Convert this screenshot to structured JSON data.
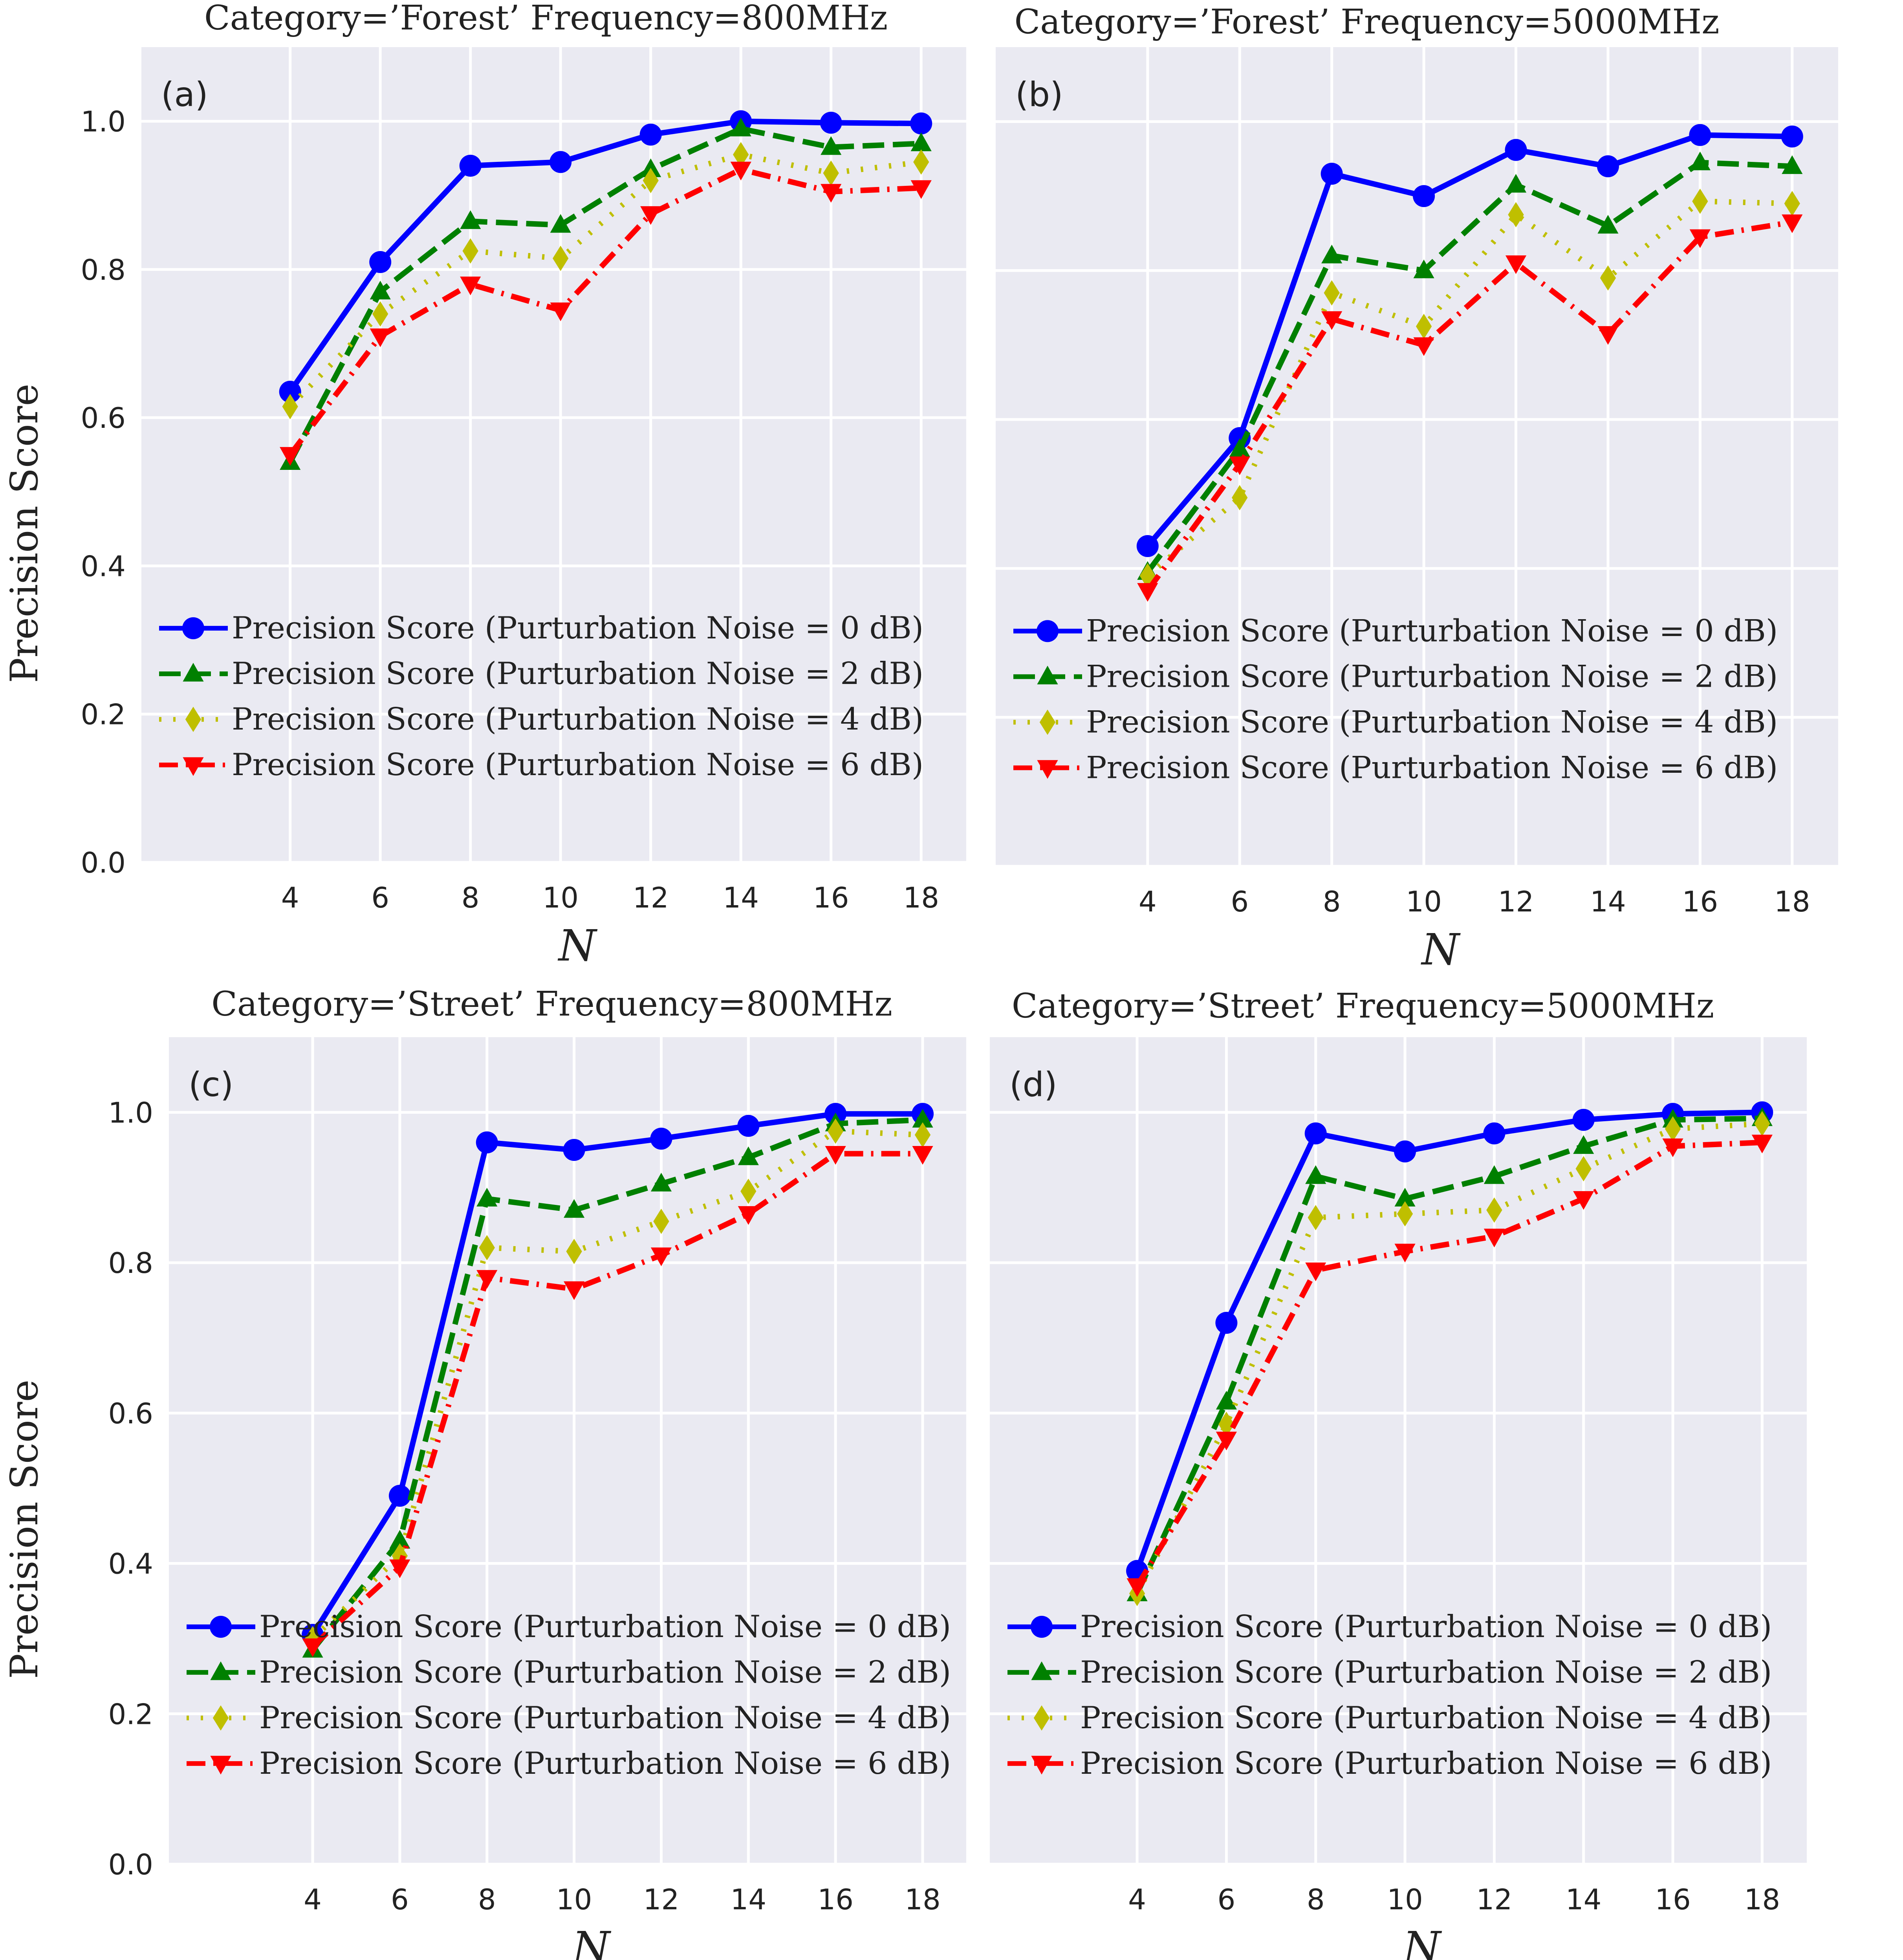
{
  "colors": {
    "panel_bg": "#eaeaf2",
    "grid": "#ffffff",
    "series": [
      "#0000ff",
      "#008000",
      "#bfbf00",
      "#ff0000"
    ]
  },
  "chart_data": [
    {
      "type": "line",
      "panel_label": "(a)",
      "title": "Category=’Forest’ Frequency=800MHz",
      "xlabel": "N",
      "ylabel": "Precision Score",
      "x": [
        4,
        6,
        8,
        10,
        12,
        14,
        16,
        18
      ],
      "xticks": [
        "4",
        "6",
        "8",
        "10",
        "12",
        "14",
        "16",
        "18"
      ],
      "ylim": [
        0.0,
        1.1
      ],
      "yticks": [
        "0.0",
        "0.2",
        "0.4",
        "0.6",
        "0.8",
        "1.0"
      ],
      "legend_position": "lower-center",
      "series": [
        {
          "name": "Precision Score (Purturbation Noise = 0 dB)",
          "values": [
            0.635,
            0.81,
            0.94,
            0.945,
            0.982,
            1.0,
            0.998,
            0.997
          ]
        },
        {
          "name": "Precision Score (Purturbation Noise = 2 dB)",
          "values": [
            0.54,
            0.77,
            0.865,
            0.86,
            0.935,
            0.99,
            0.965,
            0.97
          ]
        },
        {
          "name": "Precision Score (Purturbation Noise = 4 dB)",
          "values": [
            0.615,
            0.74,
            0.825,
            0.815,
            0.92,
            0.955,
            0.93,
            0.945
          ]
        },
        {
          "name": "Precision Score (Purturbation Noise = 6 dB)",
          "values": [
            0.55,
            0.71,
            0.78,
            0.745,
            0.875,
            0.935,
            0.905,
            0.91
          ]
        }
      ]
    },
    {
      "type": "line",
      "panel_label": "(b)",
      "title": "Category=’Forest’ Frequency=5000MHz",
      "xlabel": "N",
      "ylabel": "",
      "x": [
        4,
        6,
        8,
        10,
        12,
        14,
        16,
        18
      ],
      "xticks": [
        "4",
        "6",
        "8",
        "10",
        "12",
        "14",
        "16",
        "18"
      ],
      "ylim": [
        0.0,
        1.1
      ],
      "yticks": [],
      "legend_position": "lower-center",
      "series": [
        {
          "name": "Precision Score (Purturbation Noise = 0 dB)",
          "values": [
            0.43,
            0.575,
            0.93,
            0.9,
            0.962,
            0.94,
            0.982,
            0.98
          ]
        },
        {
          "name": "Precision Score (Purturbation Noise = 2 dB)",
          "values": [
            0.395,
            0.56,
            0.82,
            0.8,
            0.915,
            0.86,
            0.945,
            0.94
          ]
        },
        {
          "name": "Precision Score (Purturbation Noise = 4 dB)",
          "values": [
            0.39,
            0.495,
            0.77,
            0.725,
            0.875,
            0.79,
            0.893,
            0.89
          ]
        },
        {
          "name": "Precision Score (Purturbation Noise = 6 dB)",
          "values": [
            0.37,
            0.54,
            0.735,
            0.7,
            0.81,
            0.715,
            0.845,
            0.865
          ]
        }
      ]
    },
    {
      "type": "line",
      "panel_label": "(c)",
      "title": "Category=’Street’ Frequency=800MHz",
      "xlabel": "N",
      "ylabel": "Precision Score",
      "x": [
        4,
        6,
        8,
        10,
        12,
        14,
        16,
        18
      ],
      "xticks": [
        "4",
        "6",
        "8",
        "10",
        "12",
        "14",
        "16",
        "18"
      ],
      "ylim": [
        0.0,
        1.1
      ],
      "yticks": [
        "0.0",
        "0.2",
        "0.4",
        "0.6",
        "0.8",
        "1.0"
      ],
      "legend_position": "lower-center",
      "series": [
        {
          "name": "Precision Score (Purturbation Noise = 0 dB)",
          "values": [
            0.305,
            0.49,
            0.96,
            0.95,
            0.965,
            0.982,
            0.998,
            0.998
          ]
        },
        {
          "name": "Precision Score (Purturbation Noise = 2 dB)",
          "values": [
            0.285,
            0.43,
            0.885,
            0.87,
            0.905,
            0.94,
            0.985,
            0.99
          ]
        },
        {
          "name": "Precision Score (Purturbation Noise = 4 dB)",
          "values": [
            0.3,
            0.41,
            0.82,
            0.815,
            0.855,
            0.895,
            0.975,
            0.97
          ]
        },
        {
          "name": "Precision Score (Purturbation Noise = 6 dB)",
          "values": [
            0.29,
            0.395,
            0.78,
            0.765,
            0.81,
            0.865,
            0.945,
            0.945
          ]
        }
      ]
    },
    {
      "type": "line",
      "panel_label": "(d)",
      "title": "Category=’Street’ Frequency=5000MHz",
      "xlabel": "N",
      "ylabel": "",
      "x": [
        4,
        6,
        8,
        10,
        12,
        14,
        16,
        18
      ],
      "xticks": [
        "4",
        "6",
        "8",
        "10",
        "12",
        "14",
        "16",
        "18"
      ],
      "ylim": [
        0.0,
        1.1
      ],
      "yticks": [],
      "legend_position": "lower-center",
      "series": [
        {
          "name": "Precision Score (Purturbation Noise = 0 dB)",
          "values": [
            0.39,
            0.72,
            0.972,
            0.948,
            0.972,
            0.99,
            0.998,
            1.0
          ]
        },
        {
          "name": "Precision Score (Purturbation Noise = 2 dB)",
          "values": [
            0.36,
            0.615,
            0.915,
            0.885,
            0.915,
            0.955,
            0.99,
            0.992
          ]
        },
        {
          "name": "Precision Score (Purturbation Noise = 4 dB)",
          "values": [
            0.36,
            0.585,
            0.86,
            0.865,
            0.87,
            0.925,
            0.978,
            0.985
          ]
        },
        {
          "name": "Precision Score (Purturbation Noise = 6 dB)",
          "values": [
            0.37,
            0.565,
            0.79,
            0.815,
            0.835,
            0.885,
            0.955,
            0.96
          ]
        }
      ]
    }
  ]
}
